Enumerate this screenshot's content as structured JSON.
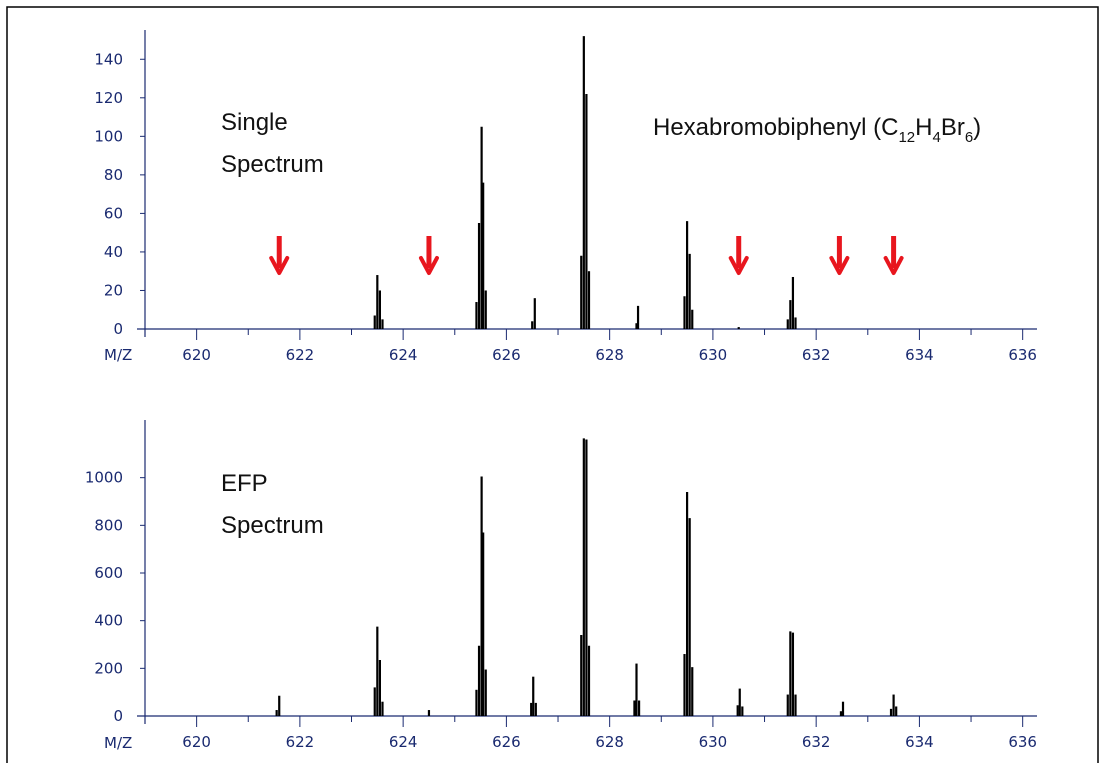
{
  "chart_data": [
    {
      "type": "bar",
      "label_lines": [
        "Single",
        "Spectrum"
      ],
      "compound": {
        "prefix": "Hexabromobiphenyl (C",
        "s1": "12",
        "m1": "H",
        "s2": "4",
        "m2": "Br",
        "s3": "6",
        "suffix": ")"
      },
      "xname": "M/Z",
      "xlim": [
        619,
        636.2
      ],
      "ylim": [
        0,
        150
      ],
      "xticks": [
        "620",
        "622",
        "624",
        "626",
        "628",
        "630",
        "632",
        "634",
        "636"
      ],
      "yticks": [
        "0",
        "20",
        "40",
        "60",
        "80",
        "100",
        "120",
        "140"
      ],
      "peaks": [
        {
          "x": 623.45,
          "y": 7
        },
        {
          "x": 623.5,
          "y": 28
        },
        {
          "x": 623.55,
          "y": 20
        },
        {
          "x": 623.6,
          "y": 5
        },
        {
          "x": 625.42,
          "y": 14
        },
        {
          "x": 625.47,
          "y": 55
        },
        {
          "x": 625.52,
          "y": 105
        },
        {
          "x": 625.55,
          "y": 76
        },
        {
          "x": 625.6,
          "y": 20
        },
        {
          "x": 626.5,
          "y": 4
        },
        {
          "x": 626.55,
          "y": 16
        },
        {
          "x": 627.45,
          "y": 38
        },
        {
          "x": 627.5,
          "y": 152
        },
        {
          "x": 627.55,
          "y": 122
        },
        {
          "x": 627.6,
          "y": 30
        },
        {
          "x": 628.52,
          "y": 3
        },
        {
          "x": 628.55,
          "y": 12
        },
        {
          "x": 629.45,
          "y": 17
        },
        {
          "x": 629.5,
          "y": 56
        },
        {
          "x": 629.55,
          "y": 39
        },
        {
          "x": 629.6,
          "y": 10
        },
        {
          "x": 630.5,
          "y": 1
        },
        {
          "x": 631.45,
          "y": 5
        },
        {
          "x": 631.5,
          "y": 15
        },
        {
          "x": 631.55,
          "y": 27
        },
        {
          "x": 631.6,
          "y": 6
        }
      ],
      "arrows_x": [
        621.6,
        624.5,
        630.5,
        632.45,
        633.5
      ],
      "arrow_color": "#e8161e",
      "line_color": "#000000",
      "tick_color": "#1a2a70"
    },
    {
      "type": "bar",
      "label_lines": [
        "EFP",
        "Spectrum"
      ],
      "xname": "M/Z",
      "xlim": [
        619,
        636.2
      ],
      "ylim": [
        0,
        1200
      ],
      "xticks": [
        "620",
        "622",
        "624",
        "626",
        "628",
        "630",
        "632",
        "634",
        "636"
      ],
      "yticks": [
        "0",
        "200",
        "400",
        "600",
        "800",
        "1000"
      ],
      "peaks": [
        {
          "x": 621.55,
          "y": 25
        },
        {
          "x": 621.6,
          "y": 85
        },
        {
          "x": 623.45,
          "y": 120
        },
        {
          "x": 623.5,
          "y": 375
        },
        {
          "x": 623.55,
          "y": 235
        },
        {
          "x": 623.6,
          "y": 60
        },
        {
          "x": 624.5,
          "y": 25
        },
        {
          "x": 625.42,
          "y": 110
        },
        {
          "x": 625.47,
          "y": 295
        },
        {
          "x": 625.52,
          "y": 1005
        },
        {
          "x": 625.55,
          "y": 770
        },
        {
          "x": 625.6,
          "y": 195
        },
        {
          "x": 626.48,
          "y": 55
        },
        {
          "x": 626.52,
          "y": 165
        },
        {
          "x": 626.57,
          "y": 55
        },
        {
          "x": 627.45,
          "y": 340
        },
        {
          "x": 627.5,
          "y": 1165
        },
        {
          "x": 627.55,
          "y": 1160
        },
        {
          "x": 627.6,
          "y": 295
        },
        {
          "x": 628.48,
          "y": 65
        },
        {
          "x": 628.52,
          "y": 220
        },
        {
          "x": 628.57,
          "y": 65
        },
        {
          "x": 629.45,
          "y": 260
        },
        {
          "x": 629.5,
          "y": 940
        },
        {
          "x": 629.55,
          "y": 830
        },
        {
          "x": 629.6,
          "y": 205
        },
        {
          "x": 630.48,
          "y": 45
        },
        {
          "x": 630.52,
          "y": 115
        },
        {
          "x": 630.57,
          "y": 40
        },
        {
          "x": 631.45,
          "y": 90
        },
        {
          "x": 631.5,
          "y": 355
        },
        {
          "x": 631.55,
          "y": 350
        },
        {
          "x": 631.6,
          "y": 90
        },
        {
          "x": 632.48,
          "y": 20
        },
        {
          "x": 632.52,
          "y": 60
        },
        {
          "x": 633.45,
          "y": 30
        },
        {
          "x": 633.5,
          "y": 90
        },
        {
          "x": 633.55,
          "y": 40
        }
      ],
      "line_color": "#000000",
      "tick_color": "#1a2a70"
    }
  ]
}
